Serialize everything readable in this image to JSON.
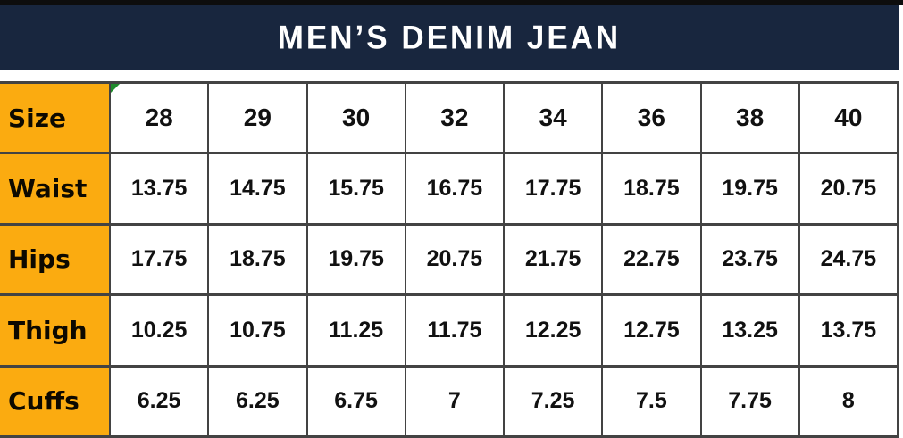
{
  "banner": {
    "title": "MEN’S DENIM JEAN"
  },
  "colors": {
    "top_bar": "#0d0d0d",
    "banner_bg": "#18263e",
    "banner_text": "#ffffff",
    "label_bg": "#fbab10",
    "border": "#434343",
    "cell_text": "#111111",
    "marker_green": "#1f8a2c"
  },
  "table": {
    "corner_label": "Size",
    "size_headers": [
      "28",
      "29",
      "30",
      "32",
      "34",
      "36",
      "38",
      "40"
    ],
    "rows": [
      {
        "label": "Waist",
        "values": [
          "13.75",
          "14.75",
          "15.75",
          "16.75",
          "17.75",
          "18.75",
          "19.75",
          "20.75"
        ]
      },
      {
        "label": "Hips",
        "values": [
          "17.75",
          "18.75",
          "19.75",
          "20.75",
          "21.75",
          "22.75",
          "23.75",
          "24.75"
        ]
      },
      {
        "label": "Thigh",
        "values": [
          "10.25",
          "10.75",
          "11.25",
          "11.75",
          "12.25",
          "12.75",
          "13.25",
          "13.75"
        ]
      },
      {
        "label": "Cuffs",
        "values": [
          "6.25",
          "6.25",
          "6.75",
          "7",
          "7.25",
          "7.5",
          "7.75",
          "8"
        ]
      }
    ]
  }
}
